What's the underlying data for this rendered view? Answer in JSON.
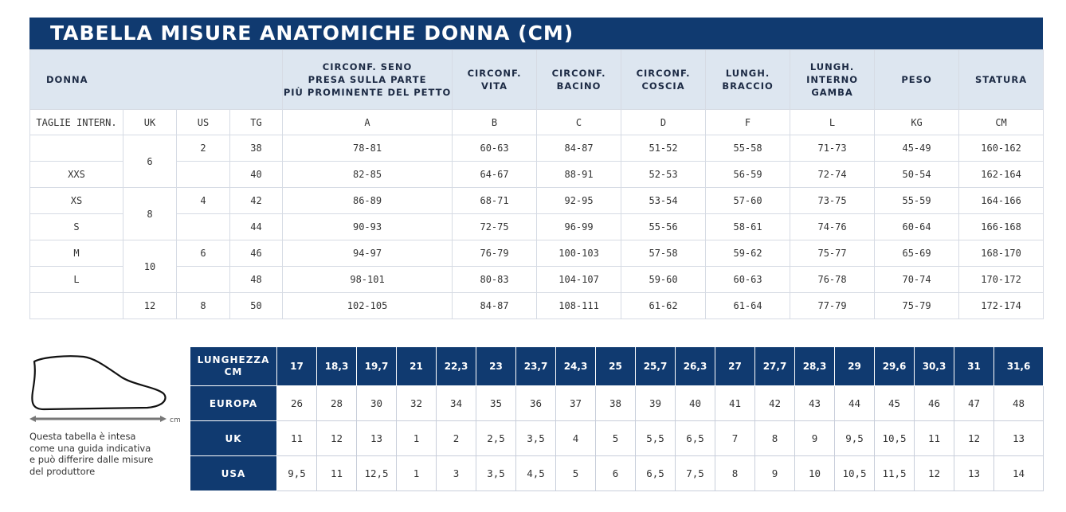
{
  "title": "TABELLA MISURE ANATOMICHE DONNA (CM)",
  "headers": {
    "donna": "DONNA",
    "a": [
      "CIRCONF. SENO",
      "PRESA SULLA PARTE",
      "PIÙ PROMINENTE DEL PETTO"
    ],
    "b": [
      "CIRCONF.",
      "VITA"
    ],
    "c": [
      "CIRCONF.",
      "BACINO"
    ],
    "d": [
      "CIRCONF.",
      "COSCIA"
    ],
    "f": [
      "LUNGH.",
      "BRACCIO"
    ],
    "l": [
      "LUNGH.",
      "INTERNO",
      "GAMBA"
    ],
    "peso": "PESO",
    "statura": "STATURA"
  },
  "codes": [
    "TAGLIE INTERN.",
    "UK",
    "US",
    "TG",
    "A",
    "B",
    "C",
    "D",
    "F",
    "L",
    "KG",
    "CM"
  ],
  "rows": [
    {
      "intern": "",
      "us": "2",
      "tg": "38",
      "a": "78-81",
      "b": "60-63",
      "c": "84-87",
      "d": "51-52",
      "f": "55-58",
      "l": "71-73",
      "kg": "45-49",
      "cm": "160-162"
    },
    {
      "intern": "XXS",
      "us": "",
      "tg": "40",
      "a": "82-85",
      "b": "64-67",
      "c": "88-91",
      "d": "52-53",
      "f": "56-59",
      "l": "72-74",
      "kg": "50-54",
      "cm": "162-164"
    },
    {
      "intern": "XS",
      "us": "4",
      "tg": "42",
      "a": "86-89",
      "b": "68-71",
      "c": "92-95",
      "d": "53-54",
      "f": "57-60",
      "l": "73-75",
      "kg": "55-59",
      "cm": "164-166"
    },
    {
      "intern": "S",
      "us": "",
      "tg": "44",
      "a": "90-93",
      "b": "72-75",
      "c": "96-99",
      "d": "55-56",
      "f": "58-61",
      "l": "74-76",
      "kg": "60-64",
      "cm": "166-168"
    },
    {
      "intern": "M",
      "us": "6",
      "tg": "46",
      "a": "94-97",
      "b": "76-79",
      "c": "100-103",
      "d": "57-58",
      "f": "59-62",
      "l": "75-77",
      "kg": "65-69",
      "cm": "168-170"
    },
    {
      "intern": "L",
      "us": "",
      "tg": "48",
      "a": "98-101",
      "b": "80-83",
      "c": "104-107",
      "d": "59-60",
      "f": "60-63",
      "l": "76-78",
      "kg": "70-74",
      "cm": "170-172"
    },
    {
      "intern": "",
      "us": "8",
      "tg": "50",
      "a": "102-105",
      "b": "84-87",
      "c": "108-111",
      "d": "61-62",
      "f": "61-64",
      "l": "77-79",
      "kg": "75-79",
      "cm": "172-174"
    }
  ],
  "uk_sizes": [
    "6",
    "8",
    "10",
    "12"
  ],
  "shoe": {
    "unit": "cm",
    "note": [
      "Questa tabella è intesa",
      "come una guida indicativa",
      "e può differire dalle misure",
      "del produttore"
    ],
    "length_label": [
      "LUNGHEZZA",
      "CM"
    ],
    "lengths": [
      "17",
      "18,3",
      "19,7",
      "21",
      "22,3",
      "23",
      "23,7",
      "24,3",
      "25",
      "25,7",
      "26,3",
      "27",
      "27,7",
      "28,3",
      "29",
      "29,6",
      "30,3",
      "31",
      "31,6"
    ],
    "europa_label": "EUROPA",
    "europa": [
      "26",
      "28",
      "30",
      "32",
      "34",
      "35",
      "36",
      "37",
      "38",
      "39",
      "40",
      "41",
      "42",
      "43",
      "44",
      "45",
      "46",
      "47",
      "48"
    ],
    "uk_label": "UK",
    "uk": [
      "11",
      "12",
      "13",
      "1",
      "2",
      "2,5",
      "3,5",
      "4",
      "5",
      "5,5",
      "6,5",
      "7",
      "8",
      "9",
      "9,5",
      "10,5",
      "11",
      "12",
      "13"
    ],
    "usa_label": "USA",
    "usa": [
      "9,5",
      "11",
      "12,5",
      "1",
      "3",
      "3,5",
      "4,5",
      "5",
      "6",
      "6,5",
      "7,5",
      "8",
      "9",
      "10",
      "10,5",
      "11,5",
      "12",
      "13",
      "14"
    ]
  },
  "colors": {
    "brand": "#103a70",
    "header_bg": "#dde6f0"
  }
}
